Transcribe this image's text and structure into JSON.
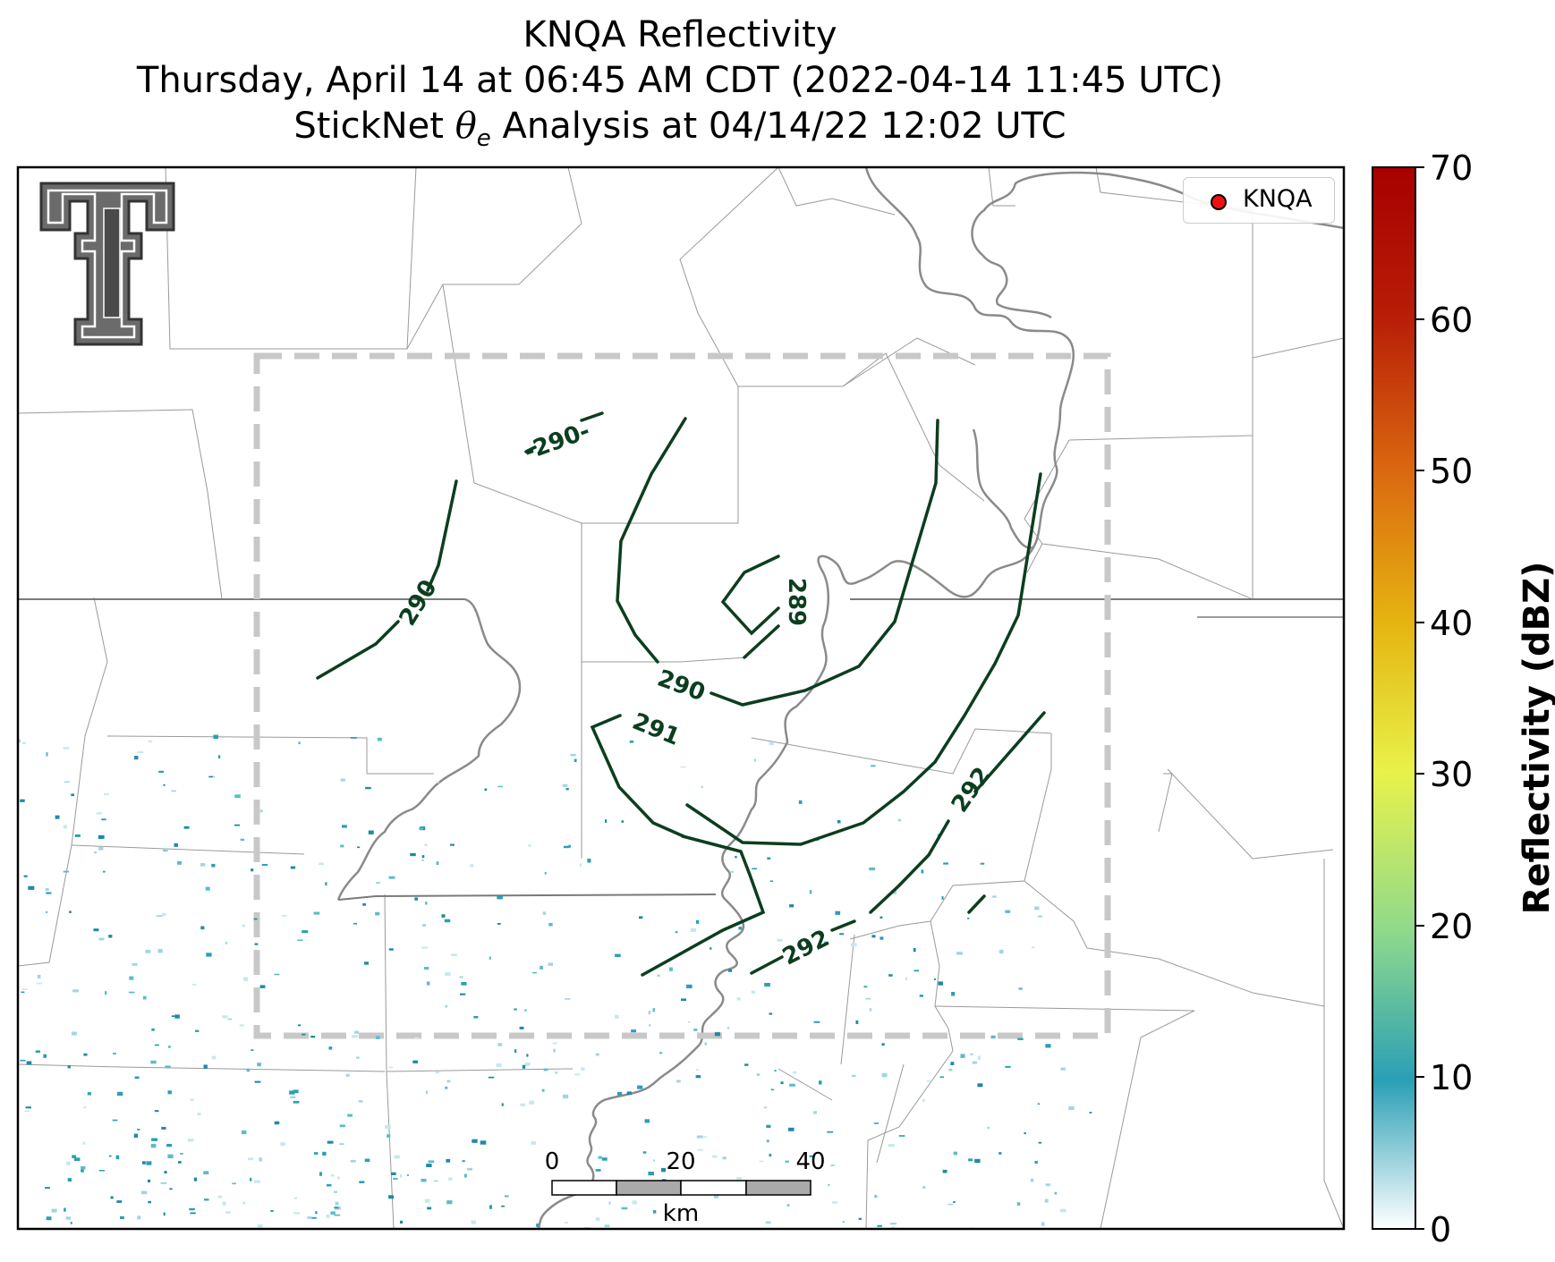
{
  "title": {
    "line1": "KNQA Reflectivity",
    "line2": "Thursday, April 14 at 06:45 AM CDT (2022-04-14 11:45 UTC)",
    "line3_prefix": "StickNet ",
    "line3_symbol": "θ",
    "line3_subscript": "e",
    "line3_suffix": " Analysis at 04/14/22 12:02 UTC"
  },
  "legend": {
    "label": "KNQA",
    "marker_color": "#ee1111"
  },
  "colorbar": {
    "label": "Reflectivity (dBZ)",
    "range": [
      0,
      70
    ],
    "ticks": [
      "0",
      "10",
      "20",
      "30",
      "40",
      "50",
      "60",
      "70"
    ],
    "colors": [
      "#ffffff",
      "#2a9fb5",
      "#8fd98c",
      "#e8f24a",
      "#e5b511",
      "#db6a10",
      "#b81d07",
      "#a80000"
    ]
  },
  "scale_bar": {
    "labels": [
      "0",
      "20",
      "40"
    ],
    "unit": "km"
  },
  "contours": {
    "color": "#0b3e1f",
    "labels": [
      "-290-",
      "290",
      "289",
      "290",
      "291",
      "292",
      "292"
    ]
  },
  "icons": {
    "logo": "texas-tech-double-t-logo"
  }
}
